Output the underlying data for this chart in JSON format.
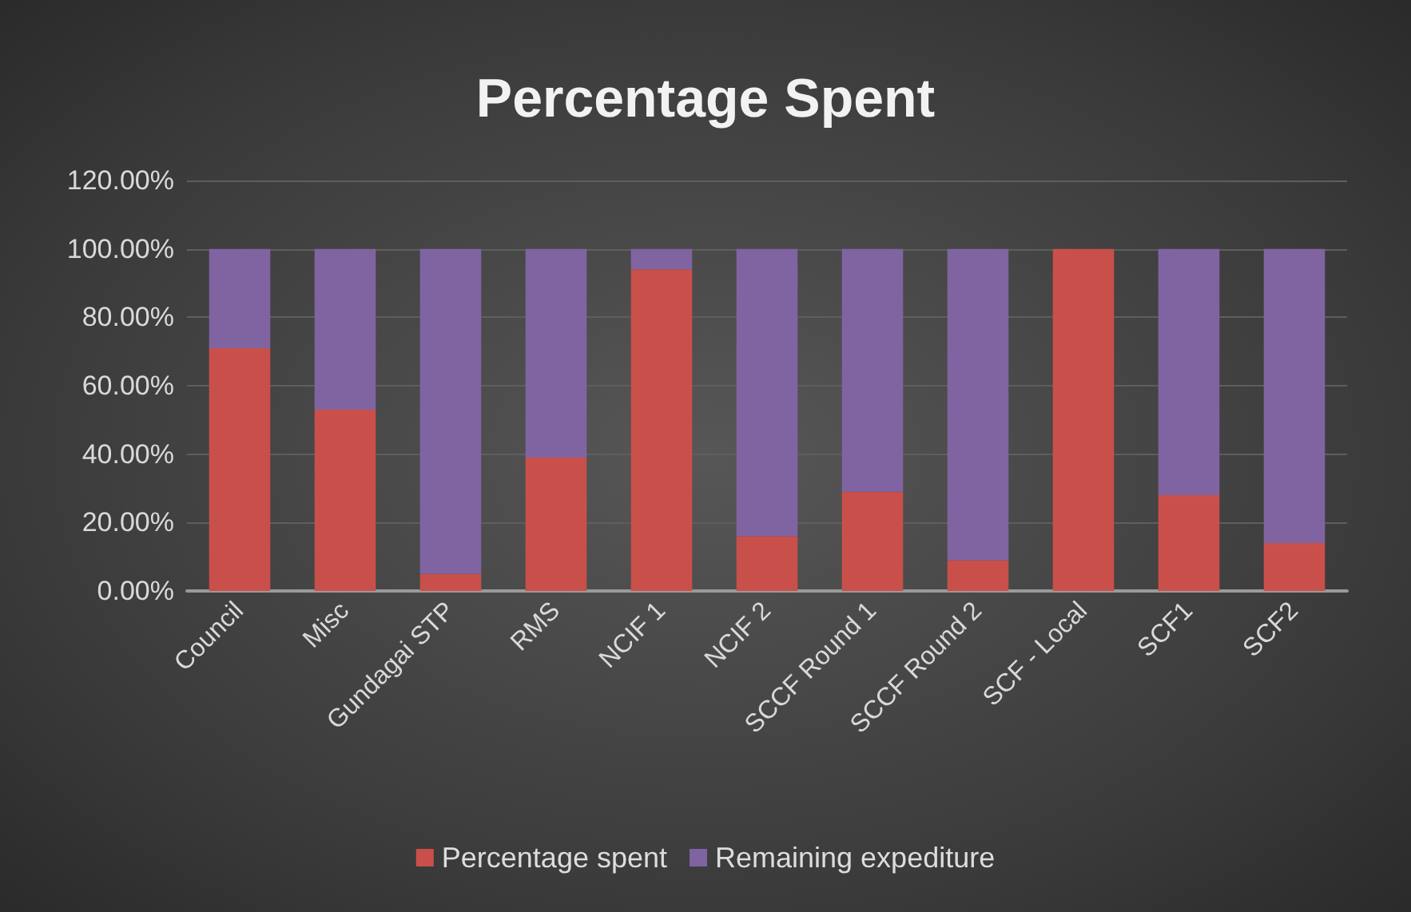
{
  "chart_data": {
    "type": "bar",
    "title": "Percentage Spent",
    "stacked": true,
    "categories": [
      "Council",
      "Misc",
      "Gundagai STP",
      "RMS",
      "NCIF 1",
      "NCIF 2",
      "SCCF Round 1",
      "SCCF Round 2",
      "SCF - Local",
      "SCF1",
      "SCF2"
    ],
    "series": [
      {
        "name": "Percentage spent",
        "color": "#c9504a",
        "values": [
          71,
          53,
          5,
          39,
          94,
          16,
          29,
          9,
          100,
          28,
          14
        ]
      },
      {
        "name": "Remaining expediture",
        "color": "#8064a2",
        "values": [
          29,
          47,
          95,
          61,
          6,
          84,
          71,
          91,
          0,
          72,
          86
        ]
      }
    ],
    "ylim": [
      0,
      120
    ],
    "yticks": [
      {
        "value": 0,
        "label": "0.00%"
      },
      {
        "value": 20,
        "label": "20.00%"
      },
      {
        "value": 40,
        "label": "40.00%"
      },
      {
        "value": 60,
        "label": "60.00%"
      },
      {
        "value": 80,
        "label": "80.00%"
      },
      {
        "value": 100,
        "label": "100.00%"
      },
      {
        "value": 120,
        "label": "120.00%"
      }
    ],
    "grid": "y",
    "legend": "bottom"
  }
}
